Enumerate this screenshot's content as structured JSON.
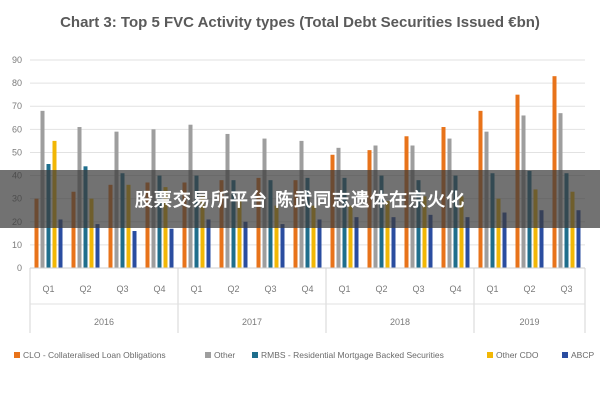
{
  "title": "Chart 3: Top 5 FVC Activity types (Total Debt Securities Issued €bn)",
  "overlay_text": "股票交易所平台 陈武同志遗体在京火化",
  "chart_data": {
    "type": "bar",
    "title": "Chart 3: Top 5 FVC Activity types (Total Debt Securities Issued €bn)",
    "xlabel": "",
    "ylabel": "",
    "ylim": [
      0,
      90
    ],
    "yticks": [
      0,
      10,
      20,
      30,
      40,
      50,
      60,
      70,
      80,
      90
    ],
    "grid": true,
    "legend_position": "bottom",
    "categories": [
      "Q1",
      "Q2",
      "Q3",
      "Q4",
      "Q1",
      "Q2",
      "Q3",
      "Q4",
      "Q1",
      "Q2",
      "Q3",
      "Q4",
      "Q1",
      "Q2",
      "Q3"
    ],
    "groups": [
      {
        "label": "2016",
        "count": 4
      },
      {
        "label": "2017",
        "count": 4
      },
      {
        "label": "2018",
        "count": 4
      },
      {
        "label": "2019",
        "count": 3
      }
    ],
    "series": [
      {
        "name": "CLO - Collateralised Loan Obligations",
        "color": "#E8731A",
        "values": [
          30,
          33,
          36,
          37,
          37,
          38,
          39,
          38,
          49,
          51,
          57,
          61,
          68,
          75,
          83
        ]
      },
      {
        "name": "Other",
        "color": "#9E9E9E",
        "values": [
          68,
          61,
          59,
          60,
          62,
          58,
          56,
          55,
          52,
          53,
          53,
          56,
          59,
          66,
          67
        ]
      },
      {
        "name": "RMBS - Residential Mortgage Backed Securities",
        "color": "#1F6E8C",
        "values": [
          45,
          44,
          41,
          40,
          40,
          38,
          38,
          39,
          39,
          40,
          38,
          40,
          41,
          42,
          41
        ]
      },
      {
        "name": "Other CDO",
        "color": "#F2B705",
        "values": [
          55,
          30,
          36,
          35,
          31,
          29,
          27,
          27,
          27,
          29,
          31,
          31,
          30,
          34,
          33
        ]
      },
      {
        "name": "ABCP",
        "color": "#2A4DA0",
        "values": [
          21,
          19,
          16,
          17,
          21,
          20,
          19,
          21,
          22,
          22,
          23,
          22,
          24,
          25,
          25
        ]
      }
    ]
  }
}
